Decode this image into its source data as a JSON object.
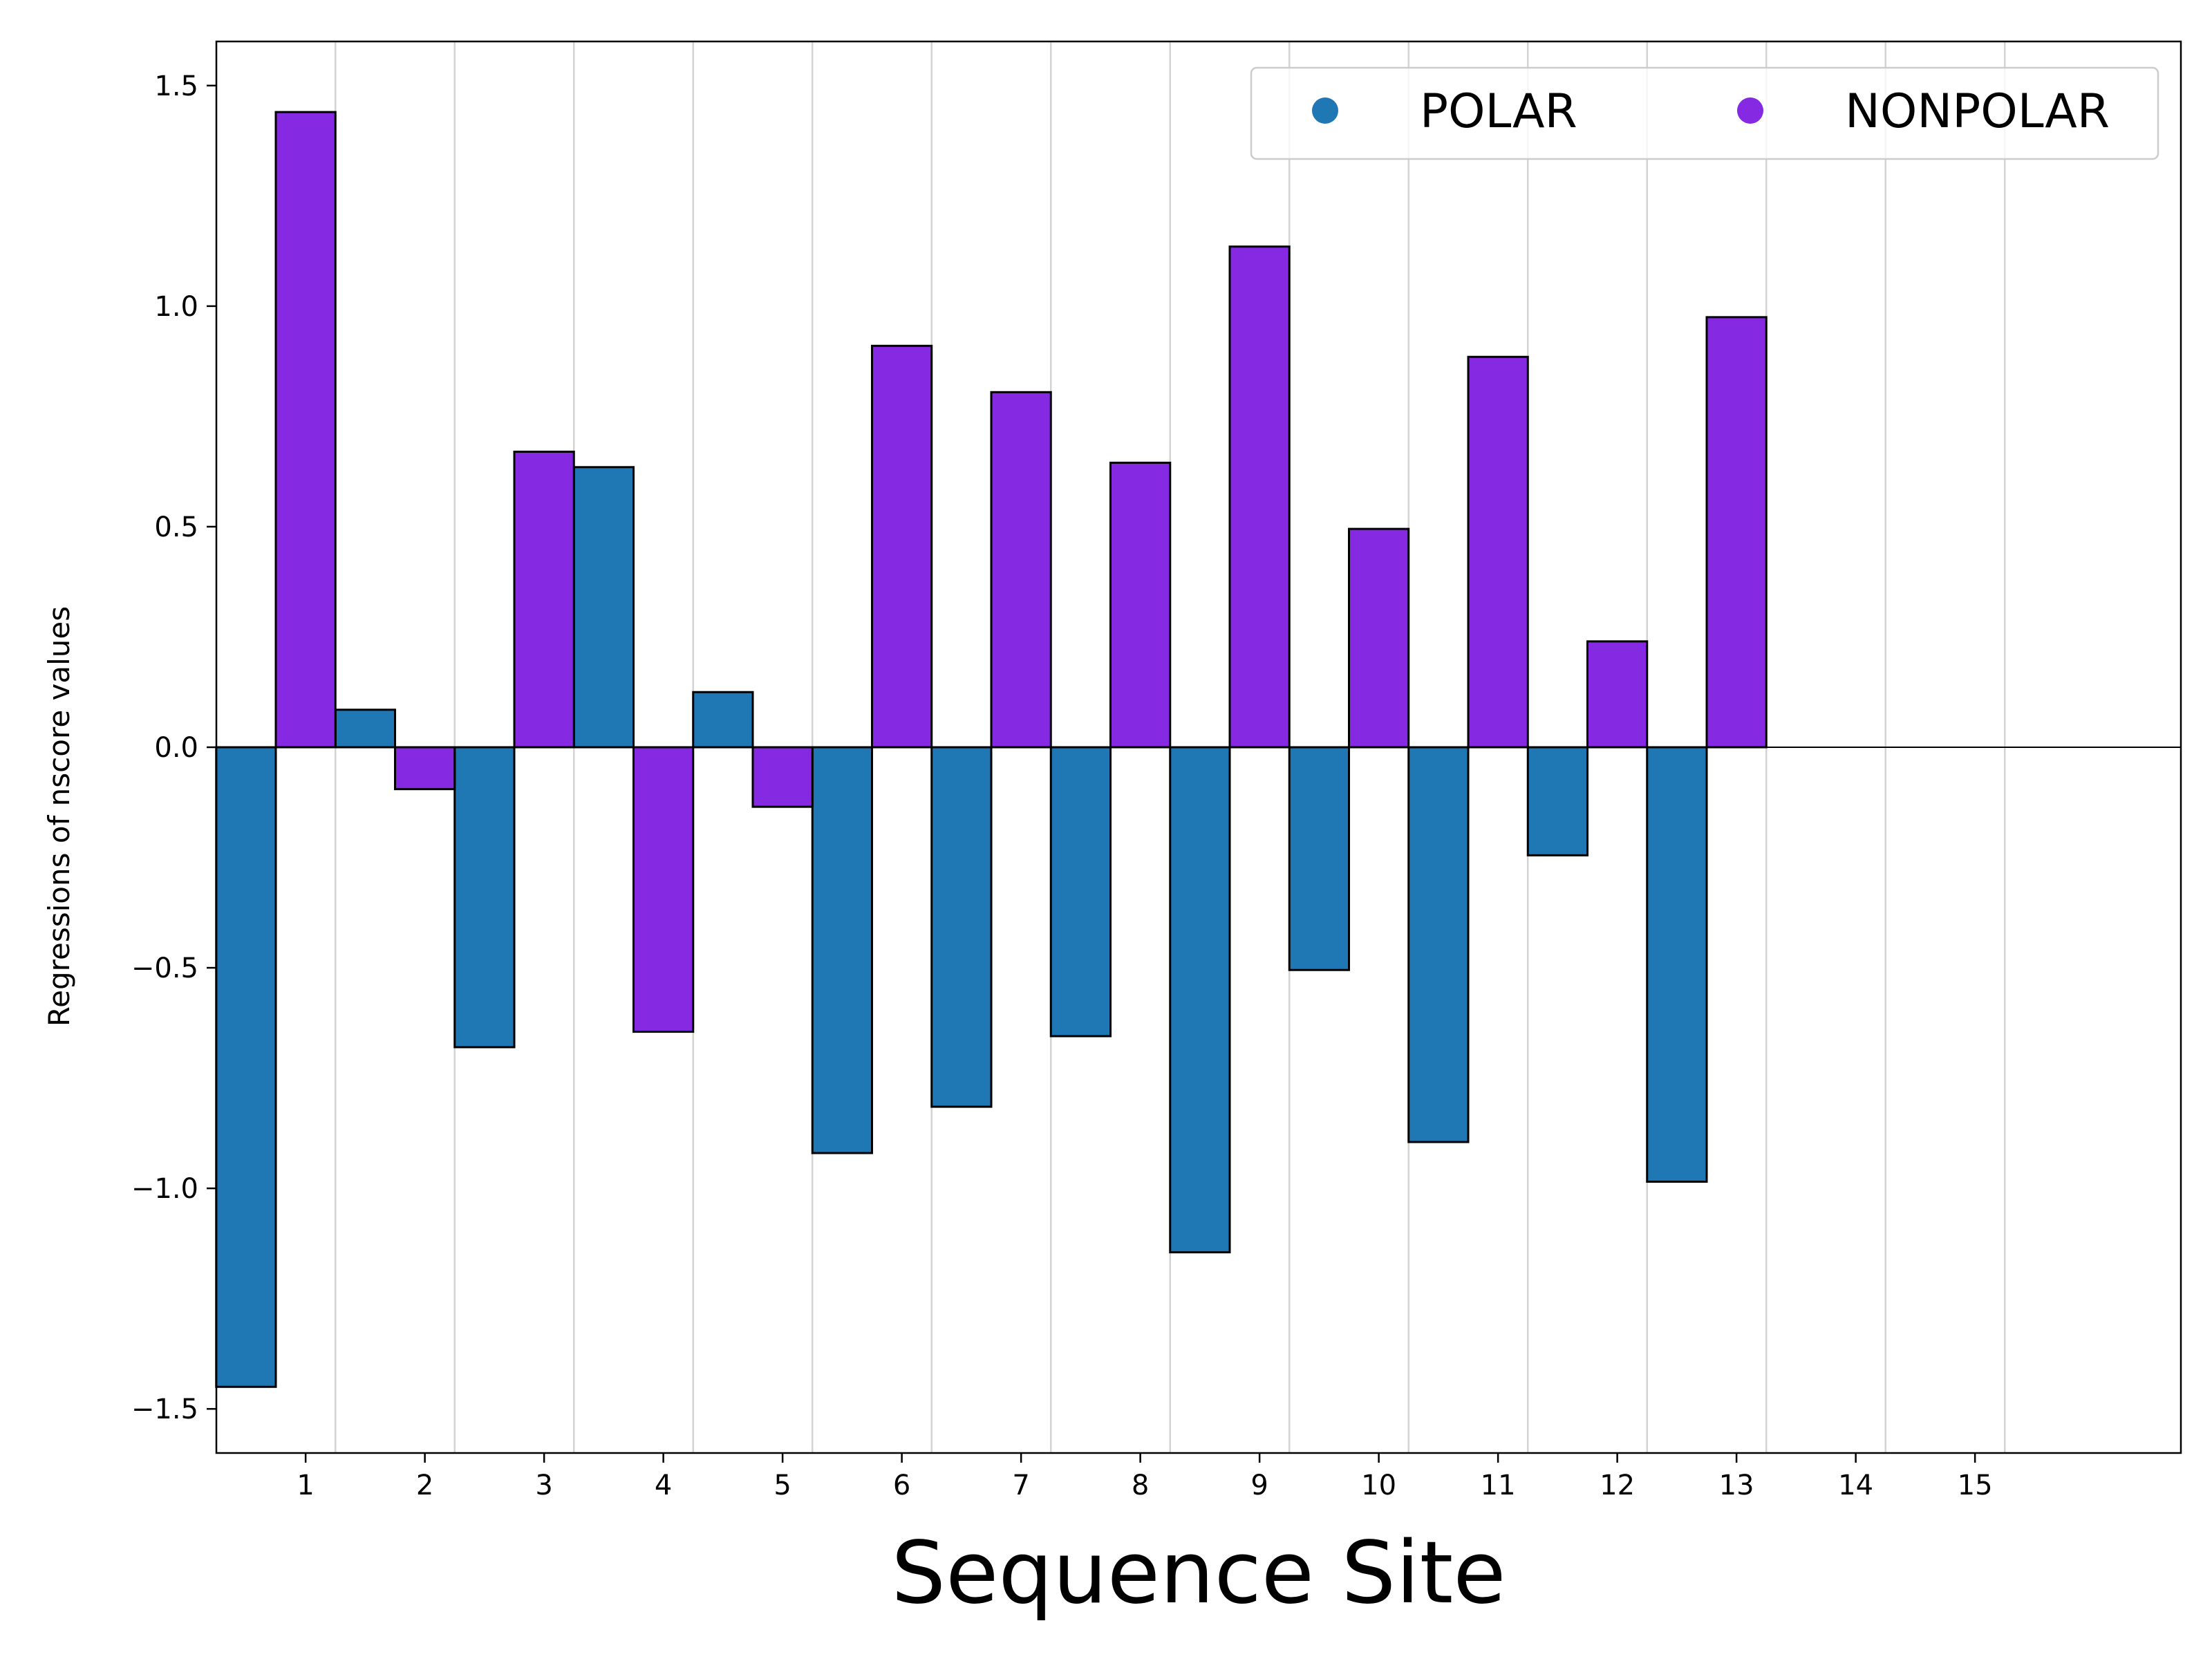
{
  "chart_data": {
    "type": "bar",
    "categories": [
      "1",
      "2",
      "3",
      "4",
      "5",
      "6",
      "7",
      "8",
      "9",
      "10",
      "11",
      "12",
      "13",
      "14",
      "15"
    ],
    "series": [
      {
        "name": "POLAR",
        "color": "#1f77b4",
        "values": [
          -1.45,
          0.085,
          -0.68,
          0.635,
          0.125,
          -0.92,
          -0.815,
          -0.655,
          -1.145,
          -0.505,
          -0.895,
          -0.245,
          -0.985,
          null,
          null
        ]
      },
      {
        "name": "NONPOLAR",
        "color": "#8629e2",
        "values": [
          1.44,
          -0.095,
          0.67,
          -0.645,
          -0.135,
          0.91,
          0.805,
          0.645,
          1.135,
          0.495,
          0.885,
          0.24,
          0.975,
          null,
          null
        ]
      }
    ],
    "xlabel": "Sequence Site",
    "ylabel": "Regressions of nscore values",
    "ylim": [
      -1.6,
      1.6
    ],
    "yticks": [
      -1.5,
      -1.0,
      -0.5,
      0.0,
      0.5,
      1.0,
      1.5
    ],
    "ytick_labels": [
      "−1.5",
      "−1.0",
      "−0.5",
      "0.0",
      "0.5",
      "1.0",
      "1.5"
    ],
    "grid": "vertical",
    "legend_position": "top-right",
    "zero_line": true
  }
}
